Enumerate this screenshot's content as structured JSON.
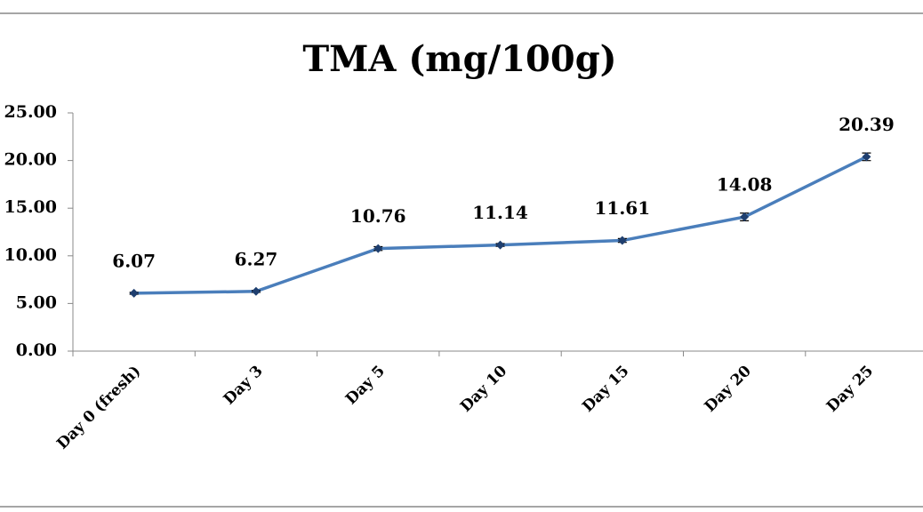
{
  "chart_data": {
    "type": "line",
    "title": "TMA (mg/100g)",
    "categories": [
      "Day 0 (fresh)",
      "Day 3",
      "Day 5",
      "Day 10",
      "Day 15",
      "Day 20",
      "Day 25"
    ],
    "series": [
      {
        "name": "TMA",
        "color": "#4a7ebb",
        "marker_color": "#1f3f6f",
        "values": [
          6.07,
          6.27,
          10.76,
          11.14,
          11.61,
          14.08,
          20.39
        ],
        "value_labels": [
          "6.07",
          "6.27",
          "10.76",
          "11.14",
          "11.61",
          "14.08",
          "20.39"
        ],
        "errors": [
          0.1,
          0.1,
          0.2,
          0.15,
          0.2,
          0.4,
          0.4
        ]
      }
    ],
    "ylim": [
      0,
      25
    ],
    "yticks": [
      {
        "value": 0,
        "label": "0.00"
      },
      {
        "value": 5,
        "label": "5.00"
      },
      {
        "value": 10,
        "label": "10.00"
      },
      {
        "value": 15,
        "label": "15.00"
      },
      {
        "value": 20,
        "label": "20.00"
      },
      {
        "value": 25,
        "label": "25.00"
      }
    ]
  }
}
